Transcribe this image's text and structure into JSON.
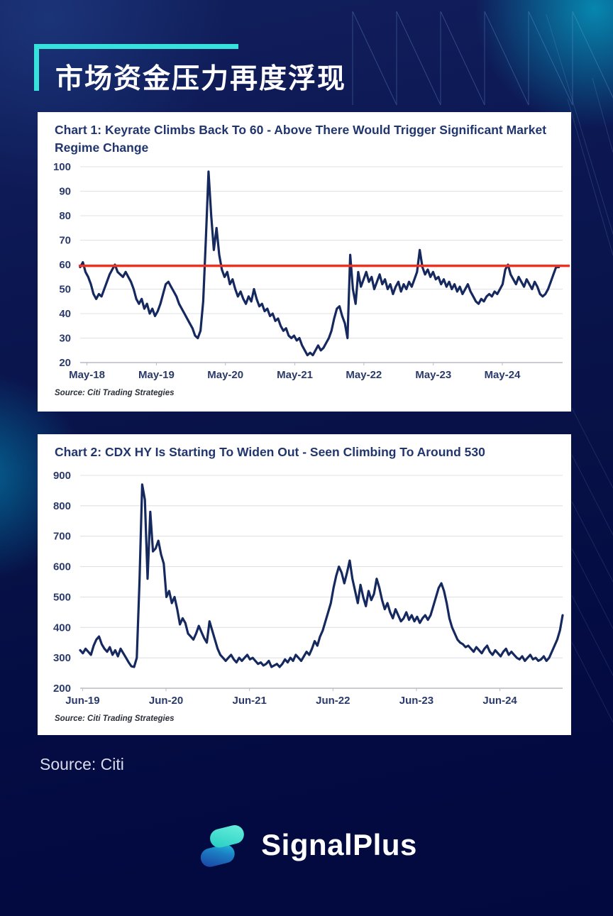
{
  "page": {
    "title": "市场资金压力再度浮现",
    "source_note": "Source: Citi",
    "brand": {
      "name": "SignalPlus"
    }
  },
  "colors": {
    "accent_cyan": "#35e3dc",
    "title_navy": "#21356f",
    "axis_label": "#2a3a6a",
    "text_white": "#ffffff",
    "source_text": "#d9dcea",
    "logo_blue": "#1a3fa0",
    "logo_teal": "#3ce6cf"
  },
  "chart_data": [
    {
      "type": "line",
      "title": "Chart 1: Keyrate Climbs Back To 60 - Above There Would Trigger Significant Market Regime Change",
      "source": "Source: Citi Trading Strategies",
      "ylim": [
        20,
        100
      ],
      "yticks": [
        20,
        30,
        40,
        50,
        60,
        70,
        80,
        90,
        100
      ],
      "grid": true,
      "legend": "none",
      "x_span": 0.992,
      "xticks": [
        {
          "label": "May-18",
          "f": 0.014
        },
        {
          "label": "May-19",
          "f": 0.158
        },
        {
          "label": "May-20",
          "f": 0.301
        },
        {
          "label": "May-21",
          "f": 0.445
        },
        {
          "label": "May-22",
          "f": 0.588
        },
        {
          "label": "May-23",
          "f": 0.732
        },
        {
          "label": "May-24",
          "f": 0.875
        }
      ],
      "reference_line": {
        "value": 59.5,
        "label": "60 regime-change threshold",
        "color": "#f2301d"
      },
      "series": [
        {
          "name": "Keyrate",
          "color": "#16295f",
          "values": [
            59,
            61,
            57,
            55,
            52,
            48,
            46,
            48,
            47,
            50,
            53,
            56,
            58,
            60,
            57,
            56,
            55,
            57,
            55,
            53,
            50,
            46,
            44,
            46,
            42,
            44,
            40,
            42,
            39,
            41,
            44,
            48,
            52,
            53,
            51,
            49,
            47,
            44,
            42,
            40,
            38,
            36,
            34,
            31,
            30,
            33,
            45,
            70,
            98,
            80,
            66,
            75,
            64,
            58,
            55,
            57,
            52,
            54,
            50,
            47,
            49,
            46,
            44,
            47,
            45,
            50,
            46,
            43,
            44,
            41,
            42,
            39,
            40,
            37,
            38,
            35,
            33,
            34,
            31,
            30,
            31,
            29,
            30,
            27,
            25,
            23,
            24,
            23,
            25,
            27,
            25,
            26,
            28,
            30,
            33,
            38,
            42,
            43,
            39,
            36,
            30,
            64,
            50,
            44,
            57,
            51,
            54,
            57,
            53,
            55,
            50,
            53,
            56,
            52,
            54,
            50,
            52,
            48,
            51,
            53,
            49,
            52,
            50,
            53,
            51,
            54,
            57,
            66,
            59,
            56,
            58,
            55,
            57,
            54,
            55,
            52,
            54,
            51,
            53,
            50,
            52,
            49,
            51,
            48,
            50,
            52,
            49,
            47,
            45,
            44,
            46,
            45,
            47,
            48,
            47,
            49,
            48,
            50,
            52,
            58,
            60,
            56,
            54,
            52,
            55,
            53,
            51,
            54,
            52,
            50,
            53,
            51,
            48,
            47,
            48,
            50,
            53,
            56,
            59,
            59
          ]
        }
      ]
    },
    {
      "type": "line",
      "title": "Chart 2: CDX HY Is Starting To Widen Out - Seen Climbing To Around 530",
      "source": "Source: Citi Trading Strategies",
      "ylim": [
        200,
        900
      ],
      "yticks": [
        200,
        300,
        400,
        500,
        600,
        700,
        800,
        900
      ],
      "grid": true,
      "legend": "none",
      "x_span": 1.0,
      "xticks": [
        {
          "label": "Jun-19",
          "f": 0.005
        },
        {
          "label": "Jun-20",
          "f": 0.178
        },
        {
          "label": "Jun-21",
          "f": 0.351
        },
        {
          "label": "Jun-22",
          "f": 0.524
        },
        {
          "label": "Jun-23",
          "f": 0.697
        },
        {
          "label": "Jun-24",
          "f": 0.87
        }
      ],
      "series": [
        {
          "name": "CDX HY spread",
          "color": "#16295f",
          "values": [
            325,
            315,
            330,
            320,
            310,
            340,
            360,
            370,
            345,
            330,
            320,
            335,
            310,
            325,
            305,
            330,
            315,
            300,
            285,
            272,
            270,
            300,
            550,
            870,
            820,
            560,
            780,
            650,
            660,
            685,
            640,
            610,
            500,
            520,
            480,
            500,
            460,
            410,
            430,
            415,
            380,
            370,
            360,
            380,
            405,
            385,
            365,
            350,
            420,
            390,
            360,
            330,
            310,
            300,
            290,
            300,
            310,
            295,
            285,
            300,
            290,
            300,
            310,
            295,
            300,
            290,
            280,
            285,
            275,
            280,
            290,
            270,
            275,
            280,
            270,
            280,
            295,
            285,
            300,
            290,
            310,
            300,
            290,
            305,
            320,
            310,
            330,
            355,
            340,
            370,
            390,
            420,
            450,
            480,
            530,
            570,
            600,
            580,
            545,
            580,
            620,
            560,
            520,
            480,
            540,
            500,
            470,
            520,
            490,
            510,
            560,
            530,
            490,
            460,
            480,
            450,
            430,
            460,
            440,
            420,
            430,
            450,
            425,
            440,
            420,
            435,
            415,
            430,
            440,
            425,
            440,
            470,
            500,
            530,
            545,
            520,
            480,
            430,
            400,
            380,
            360,
            350,
            345,
            335,
            340,
            330,
            320,
            335,
            325,
            315,
            330,
            340,
            320,
            310,
            325,
            315,
            305,
            320,
            330,
            310,
            320,
            310,
            300,
            295,
            305,
            290,
            300,
            310,
            295,
            300,
            290,
            295,
            305,
            290,
            300,
            320,
            340,
            360,
            390,
            440
          ]
        }
      ]
    }
  ]
}
